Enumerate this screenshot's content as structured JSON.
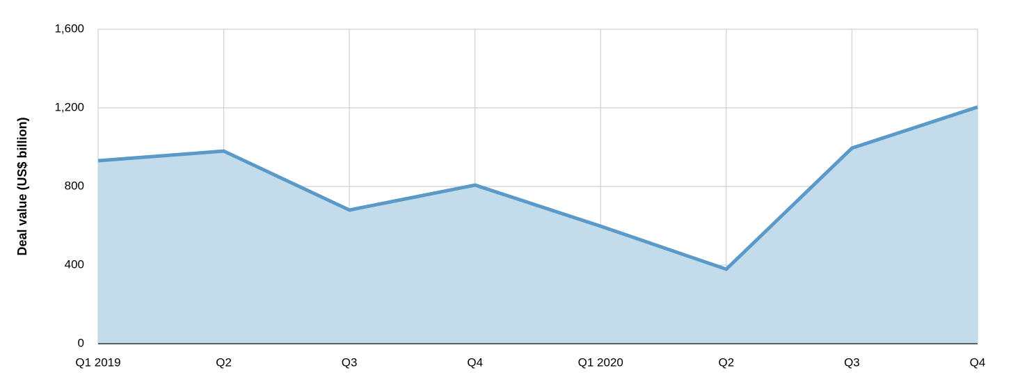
{
  "chart_data": {
    "type": "area",
    "y_label": "Deal value (US$ billion)",
    "categories": [
      "Q1 2019",
      "Q2",
      "Q3",
      "Q4",
      "Q1 2020",
      "Q2",
      "Q3",
      "Q4"
    ],
    "values": [
      931,
      980,
      680,
      807,
      598,
      379,
      995,
      1204
    ],
    "color": "#5b9ac8",
    "fill_color": "#c2dcec",
    "ylim": [
      0,
      1600
    ],
    "yticks": [
      0,
      400,
      800,
      {
        "value": 1200,
        "label": "1,200"
      },
      {
        "value": 1600,
        "label": "1,600"
      }
    ],
    "grid": true
  }
}
